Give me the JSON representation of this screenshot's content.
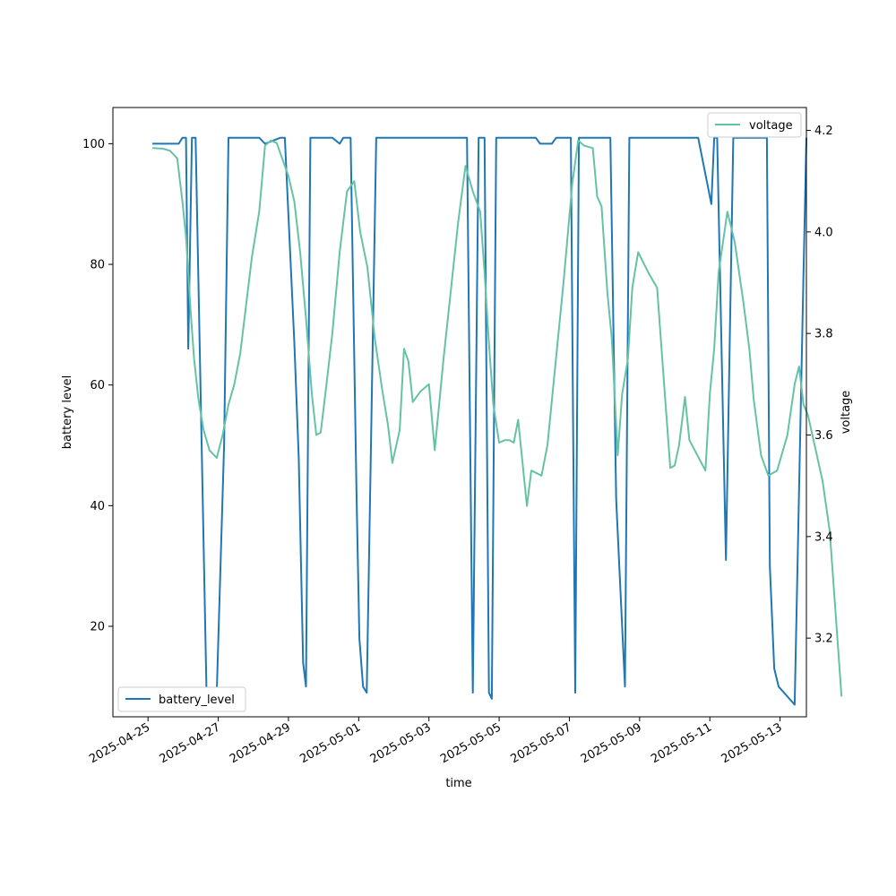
{
  "chart_data": {
    "type": "line",
    "xlabel": "time",
    "x_range": [
      "2025-04-24",
      "2025-05-13T18:00"
    ],
    "x_ticks": [
      "2025-04-25",
      "2025-04-27",
      "2025-04-29",
      "2025-05-01",
      "2025-05-03",
      "2025-05-05",
      "2025-05-07",
      "2025-05-09",
      "2025-05-11",
      "2025-05-13"
    ],
    "grid": false,
    "series": [
      {
        "name": "battery_level",
        "axis": "left",
        "color": "#1f77b4",
        "legend_position": "lower-left",
        "points": [
          [
            "2025-04-25T03:00",
            100
          ],
          [
            "2025-04-25T10:00",
            100
          ],
          [
            "2025-04-25T13:00",
            100
          ],
          [
            "2025-04-25T21:00",
            100
          ],
          [
            "2025-04-25T23:30",
            101
          ],
          [
            "2025-04-26T02:00",
            101
          ],
          [
            "2025-04-26T03:30",
            66
          ],
          [
            "2025-04-26T06:00",
            101
          ],
          [
            "2025-04-26T08:30",
            101
          ],
          [
            "2025-04-26T16:00",
            9
          ],
          [
            "2025-04-26T23:00",
            9
          ],
          [
            "2025-04-27T04:00",
            50
          ],
          [
            "2025-04-27T07:00",
            101
          ],
          [
            "2025-04-27T17:30",
            101
          ],
          [
            "2025-04-28T04:00",
            101
          ],
          [
            "2025-04-28T08:00",
            100
          ],
          [
            "2025-04-28T18:30",
            101
          ],
          [
            "2025-04-28T21:30",
            101
          ],
          [
            "2025-04-29T04:00",
            67
          ],
          [
            "2025-04-29T07:00",
            48
          ],
          [
            "2025-04-29T10:00",
            14
          ],
          [
            "2025-04-29T12:00",
            10
          ],
          [
            "2025-04-29T15:00",
            101
          ],
          [
            "2025-04-29T22:00",
            101
          ],
          [
            "2025-04-30T06:00",
            101
          ],
          [
            "2025-04-30T11:00",
            100
          ],
          [
            "2025-04-30T13:30",
            101
          ],
          [
            "2025-04-30T18:30",
            101
          ],
          [
            "2025-04-30T22:30",
            42
          ],
          [
            "2025-05-01T00:30",
            18
          ],
          [
            "2025-05-01T03:00",
            10
          ],
          [
            "2025-05-01T05:30",
            9
          ],
          [
            "2025-05-01T12:00",
            101
          ],
          [
            "2025-05-04T02:00",
            101
          ],
          [
            "2025-05-04T06:00",
            9
          ],
          [
            "2025-05-04T10:00",
            101
          ],
          [
            "2025-05-04T14:00",
            101
          ],
          [
            "2025-05-04T17:00",
            9
          ],
          [
            "2025-05-04T19:00",
            8
          ],
          [
            "2025-05-04T22:00",
            101
          ],
          [
            "2025-05-06T01:00",
            101
          ],
          [
            "2025-05-06T04:00",
            100
          ],
          [
            "2025-05-06T12:00",
            100
          ],
          [
            "2025-05-06T15:00",
            101
          ],
          [
            "2025-05-07T01:00",
            101
          ],
          [
            "2025-05-07T04:00",
            9
          ],
          [
            "2025-05-07T06:30",
            101
          ],
          [
            "2025-05-08T04:00",
            101
          ],
          [
            "2025-05-08T08:00",
            41
          ],
          [
            "2025-05-08T14:00",
            10
          ],
          [
            "2025-05-08T17:00",
            101
          ],
          [
            "2025-05-10T16:00",
            101
          ],
          [
            "2025-05-11T01:00",
            90
          ],
          [
            "2025-05-11T03:00",
            101
          ],
          [
            "2025-05-11T05:00",
            101
          ],
          [
            "2025-05-11T11:00",
            31
          ],
          [
            "2025-05-11T16:00",
            101
          ],
          [
            "2025-05-12T15:00",
            101
          ],
          [
            "2025-05-12T17:00",
            30
          ],
          [
            "2025-05-12T20:00",
            13
          ],
          [
            "2025-05-12T23:00",
            10
          ],
          [
            "2025-05-13T10:00",
            7
          ],
          [
            "2025-05-13T16:00",
            78
          ],
          [
            "2025-05-13T18:00",
            101
          ]
        ]
      },
      {
        "name": "voltage",
        "axis": "right",
        "color": "#66c2a5",
        "legend_position": "upper-right",
        "points": [
          [
            "2025-04-25T03:00",
            4.165
          ],
          [
            "2025-04-25T10:00",
            4.164
          ],
          [
            "2025-04-25T15:00",
            4.16
          ],
          [
            "2025-04-25T20:00",
            4.145
          ],
          [
            "2025-04-25T23:30",
            4.06
          ],
          [
            "2025-04-26T02:00",
            3.99
          ],
          [
            "2025-04-26T05:00",
            3.85
          ],
          [
            "2025-04-26T07:30",
            3.75
          ],
          [
            "2025-04-26T10:30",
            3.67
          ],
          [
            "2025-04-26T14:00",
            3.61
          ],
          [
            "2025-04-26T18:00",
            3.57
          ],
          [
            "2025-04-26T23:00",
            3.555
          ],
          [
            "2025-04-27T03:00",
            3.6
          ],
          [
            "2025-04-27T07:00",
            3.66
          ],
          [
            "2025-04-27T11:00",
            3.7
          ],
          [
            "2025-04-27T15:00",
            3.76
          ],
          [
            "2025-04-27T23:00",
            3.95
          ],
          [
            "2025-04-28T04:00",
            4.04
          ],
          [
            "2025-04-28T08:00",
            4.17
          ],
          [
            "2025-04-28T12:00",
            4.18
          ],
          [
            "2025-04-28T16:00",
            4.175
          ],
          [
            "2025-04-29T00:00",
            4.11
          ],
          [
            "2025-04-29T04:00",
            4.06
          ],
          [
            "2025-04-29T08:00",
            3.96
          ],
          [
            "2025-04-29T12:00",
            3.83
          ],
          [
            "2025-04-29T16:00",
            3.68
          ],
          [
            "2025-04-29T19:00",
            3.6
          ],
          [
            "2025-04-29T22:00",
            3.605
          ],
          [
            "2025-04-30T02:00",
            3.7
          ],
          [
            "2025-04-30T06:00",
            3.8
          ],
          [
            "2025-04-30T11:00",
            3.96
          ],
          [
            "2025-04-30T16:00",
            4.08
          ],
          [
            "2025-04-30T21:00",
            4.1
          ],
          [
            "2025-05-01T01:00",
            4.0
          ],
          [
            "2025-05-01T06:00",
            3.93
          ],
          [
            "2025-05-01T11:00",
            3.79
          ],
          [
            "2025-05-01T16:00",
            3.69
          ],
          [
            "2025-05-01T20:00",
            3.62
          ],
          [
            "2025-05-01T23:00",
            3.545
          ],
          [
            "2025-05-02T04:00",
            3.61
          ],
          [
            "2025-05-02T07:00",
            3.77
          ],
          [
            "2025-05-02T10:00",
            3.745
          ],
          [
            "2025-05-02T13:00",
            3.665
          ],
          [
            "2025-05-02T18:00",
            3.685
          ],
          [
            "2025-05-03T00:00",
            3.7
          ],
          [
            "2025-05-03T04:00",
            3.57
          ],
          [
            "2025-05-03T10:00",
            3.75
          ],
          [
            "2025-05-03T20:00",
            4.02
          ],
          [
            "2025-05-04T01:00",
            4.13
          ],
          [
            "2025-05-04T06:00",
            4.08
          ],
          [
            "2025-05-04T11:00",
            4.04
          ],
          [
            "2025-05-04T14:00",
            3.92
          ],
          [
            "2025-05-04T17:00",
            3.78
          ],
          [
            "2025-05-04T20:00",
            3.66
          ],
          [
            "2025-05-05T00:00",
            3.585
          ],
          [
            "2025-05-05T04:00",
            3.59
          ],
          [
            "2025-05-05T07:00",
            3.59
          ],
          [
            "2025-05-05T10:00",
            3.585
          ],
          [
            "2025-05-05T13:00",
            3.63
          ],
          [
            "2025-05-05T19:00",
            3.46
          ],
          [
            "2025-05-05T22:00",
            3.53
          ],
          [
            "2025-05-06T05:00",
            3.52
          ],
          [
            "2025-05-06T09:00",
            3.58
          ],
          [
            "2025-05-06T20:00",
            3.9
          ],
          [
            "2025-05-07T02:00",
            4.095
          ],
          [
            "2025-05-07T06:00",
            4.18
          ],
          [
            "2025-05-07T10:00",
            4.17
          ],
          [
            "2025-05-07T16:00",
            4.165
          ],
          [
            "2025-05-07T19:00",
            4.07
          ],
          [
            "2025-05-07T22:00",
            4.05
          ],
          [
            "2025-05-08T02:00",
            3.88
          ],
          [
            "2025-05-08T05:00",
            3.79
          ],
          [
            "2025-05-08T09:00",
            3.56
          ],
          [
            "2025-05-08T12:00",
            3.68
          ],
          [
            "2025-05-08T16:00",
            3.75
          ],
          [
            "2025-05-08T19:00",
            3.89
          ],
          [
            "2025-05-08T23:00",
            3.96
          ],
          [
            "2025-05-09T06:00",
            3.92
          ],
          [
            "2025-05-09T12:00",
            3.89
          ],
          [
            "2025-05-09T17:00",
            3.69
          ],
          [
            "2025-05-09T21:00",
            3.535
          ],
          [
            "2025-05-10T00:00",
            3.54
          ],
          [
            "2025-05-10T03:00",
            3.58
          ],
          [
            "2025-05-10T07:00",
            3.675
          ],
          [
            "2025-05-10T10:00",
            3.59
          ],
          [
            "2025-05-10T21:00",
            3.53
          ],
          [
            "2025-05-11T00:00",
            3.68
          ],
          [
            "2025-05-11T03:00",
            3.77
          ],
          [
            "2025-05-11T06:00",
            3.92
          ],
          [
            "2025-05-11T12:00",
            4.04
          ],
          [
            "2025-05-11T17:00",
            3.98
          ],
          [
            "2025-05-11T23:00",
            3.86
          ],
          [
            "2025-05-12T03:00",
            3.77
          ],
          [
            "2025-05-12T06:00",
            3.67
          ],
          [
            "2025-05-12T11:00",
            3.56
          ],
          [
            "2025-05-12T16:00",
            3.52
          ],
          [
            "2025-05-12T22:00",
            3.53
          ],
          [
            "2025-05-13T05:00",
            3.6
          ],
          [
            "2025-05-13T10:00",
            3.7
          ],
          [
            "2025-05-13T13:00",
            3.735
          ],
          [
            "2025-05-13T16:00",
            3.66
          ],
          [
            "2025-05-13T19:00",
            3.64
          ],
          [
            "2025-05-14T05:00",
            3.51
          ],
          [
            "2025-05-14T10:00",
            3.41
          ],
          [
            "2025-05-14T18:00",
            3.085
          ]
        ]
      }
    ],
    "axes": {
      "left": {
        "label": "battery level",
        "range": [
          5,
          106
        ],
        "ticks": [
          20,
          40,
          60,
          80,
          100
        ]
      },
      "right": {
        "label": "voltage",
        "range": [
          3.045,
          4.245
        ],
        "ticks": [
          3.2,
          3.4,
          3.6,
          3.8,
          4.0,
          4.2
        ]
      }
    }
  }
}
